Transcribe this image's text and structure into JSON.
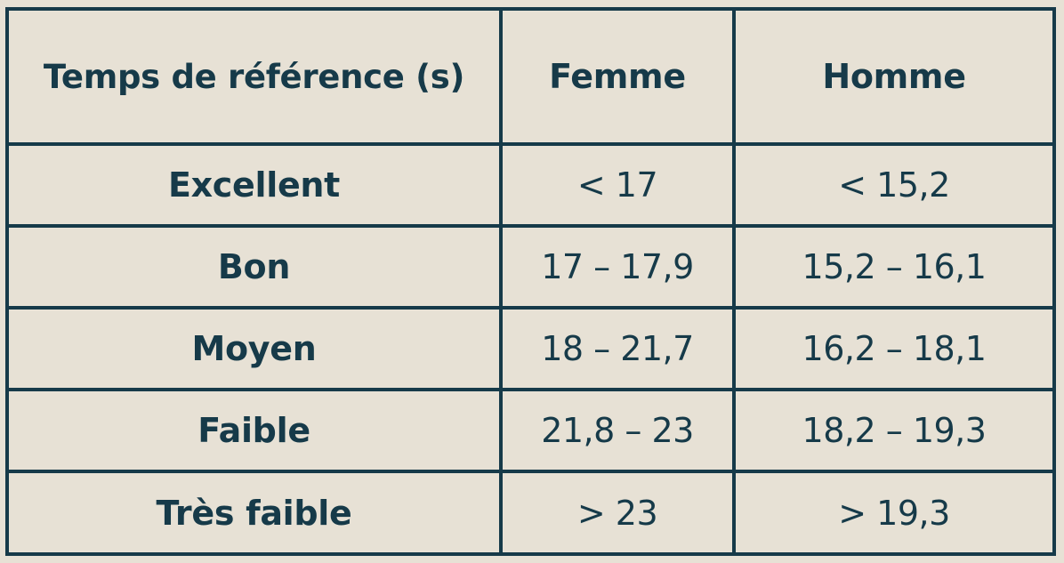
{
  "table": {
    "headers": [
      "Temps de référence (s)",
      "Femme",
      "Homme"
    ],
    "rows": [
      {
        "label": "Excellent",
        "femme": "< 17",
        "homme": "< 15,2"
      },
      {
        "label": "Bon",
        "femme": "17 – 17,9",
        "homme": "15,2 – 16,1"
      },
      {
        "label": "Moyen",
        "femme": "18 – 21,7",
        "homme": "16,2 – 18,1"
      },
      {
        "label": "Faible",
        "femme": "21,8 – 23",
        "homme": "18,2 – 19,3"
      },
      {
        "label": "Très faible",
        "femme": "> 23",
        "homme": "> 19,3"
      }
    ]
  },
  "colors": {
    "background": "#e7e1d5",
    "ink": "#163a49"
  }
}
